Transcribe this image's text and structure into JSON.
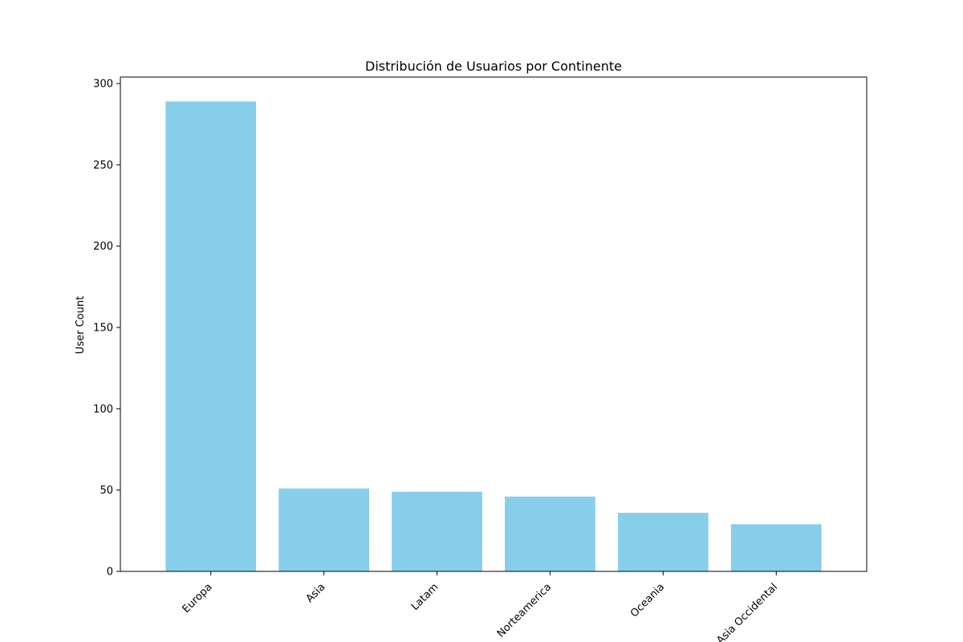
{
  "chart_data": {
    "type": "bar",
    "title": "Distribución de Usuarios por Continente",
    "xlabel": "",
    "ylabel": "User Count",
    "categories": [
      "Europa",
      "Asia",
      "Latam",
      "Norteamerica",
      "Oceania",
      "Asia Occidental"
    ],
    "values": [
      289,
      51,
      49,
      46,
      36,
      29
    ],
    "ylim": [
      0,
      304
    ],
    "yticks": [
      0,
      50,
      100,
      150,
      200,
      250,
      300
    ],
    "bar_color": "#87CEEB",
    "grid": false,
    "legend": "none"
  }
}
